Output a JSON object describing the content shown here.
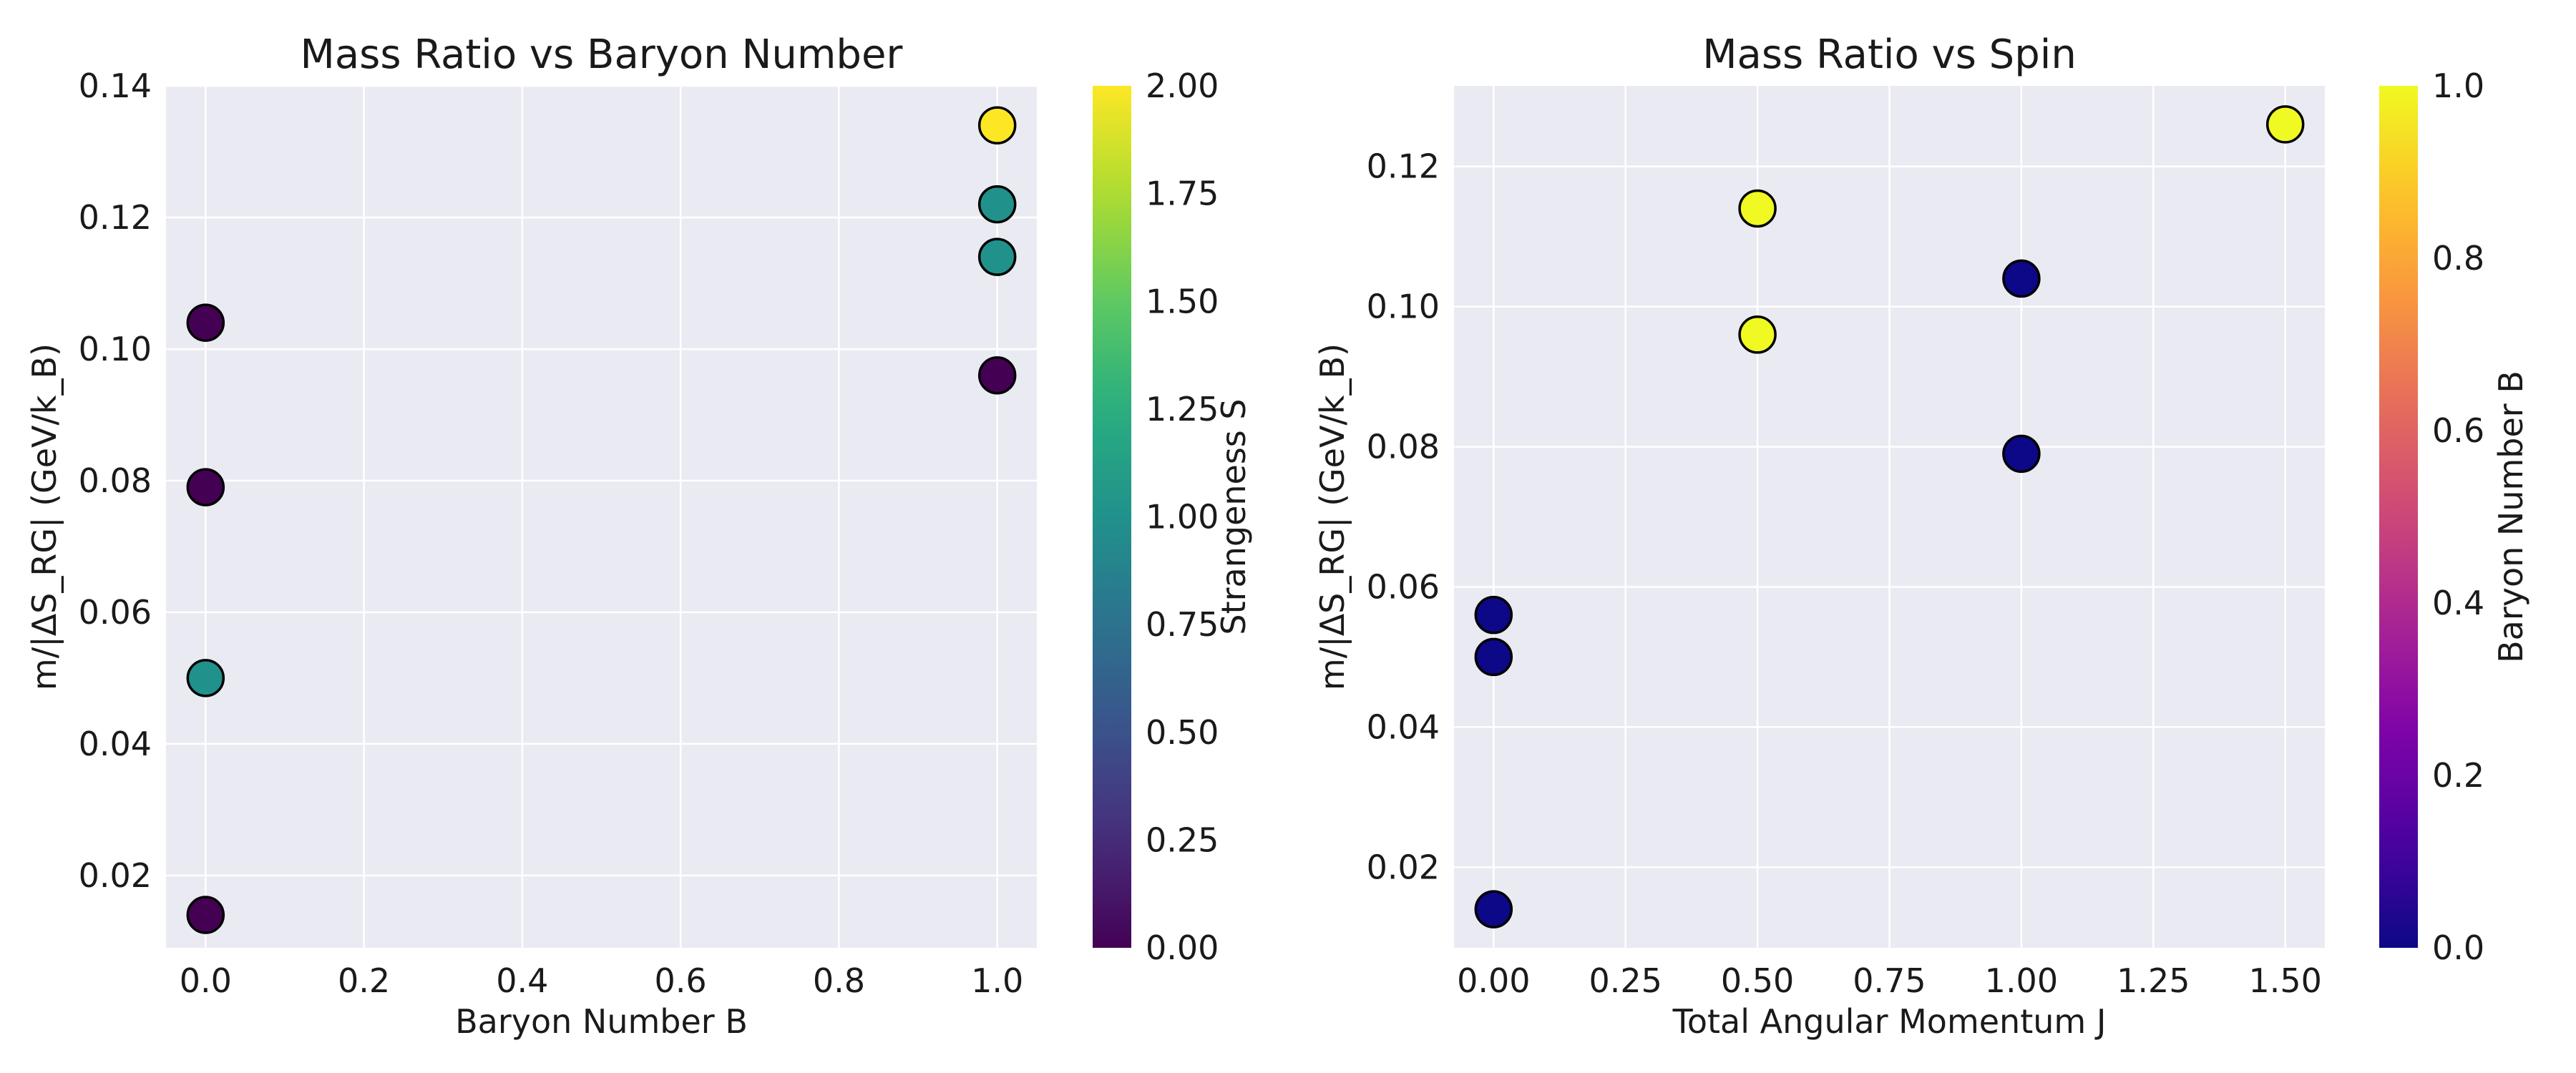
{
  "chart_data": [
    {
      "type": "scatter",
      "title": "Mass Ratio vs Baryon Number",
      "xlabel": "Baryon Number B",
      "ylabel": "m/|ΔS_RG| (GeV/k_B)",
      "xlim": [
        -0.05,
        1.05
      ],
      "ylim": [
        0.009,
        0.14
      ],
      "xticks": [
        "0.0",
        "0.2",
        "0.4",
        "0.6",
        "0.8",
        "1.0"
      ],
      "yticks": [
        "0.02",
        "0.04",
        "0.06",
        "0.08",
        "0.10",
        "0.12",
        "0.14"
      ],
      "grid": true,
      "colormap": "viridis",
      "colorbar": {
        "label": "Strangeness S",
        "range": [
          0,
          2
        ],
        "ticks": [
          "0.00",
          "0.25",
          "0.50",
          "0.75",
          "1.00",
          "1.25",
          "1.50",
          "1.75",
          "2.00"
        ]
      },
      "points": [
        {
          "x": 0,
          "y": 0.104,
          "c": 0
        },
        {
          "x": 0,
          "y": 0.079,
          "c": 0
        },
        {
          "x": 0,
          "y": 0.05,
          "c": 1
        },
        {
          "x": 0,
          "y": 0.014,
          "c": 0
        },
        {
          "x": 1,
          "y": 0.134,
          "c": 2
        },
        {
          "x": 1,
          "y": 0.122,
          "c": 1
        },
        {
          "x": 1,
          "y": 0.114,
          "c": 1
        },
        {
          "x": 1,
          "y": 0.096,
          "c": 0
        }
      ]
    },
    {
      "type": "scatter",
      "title": "Mass Ratio vs Spin",
      "xlabel": "Total Angular Momentum J",
      "ylabel": "m/|ΔS_RG| (GeV/k_B)",
      "xlim": [
        -0.075,
        1.575
      ],
      "ylim": [
        0.0085,
        0.1315
      ],
      "xticks": [
        "0.00",
        "0.25",
        "0.50",
        "0.75",
        "1.00",
        "1.25",
        "1.50"
      ],
      "yticks": [
        "0.02",
        "0.04",
        "0.06",
        "0.08",
        "0.10",
        "0.12"
      ],
      "grid": true,
      "colormap": "plasma",
      "colorbar": {
        "label": "Baryon Number B",
        "range": [
          0,
          1
        ],
        "ticks": [
          "0.0",
          "0.2",
          "0.4",
          "0.6",
          "0.8",
          "1.0"
        ]
      },
      "points": [
        {
          "x": 1.5,
          "y": 0.126,
          "c": 1
        },
        {
          "x": 0.5,
          "y": 0.114,
          "c": 1
        },
        {
          "x": 0.5,
          "y": 0.096,
          "c": 1
        },
        {
          "x": 1.0,
          "y": 0.104,
          "c": 0
        },
        {
          "x": 1.0,
          "y": 0.079,
          "c": 0
        },
        {
          "x": 0.0,
          "y": 0.056,
          "c": 0
        },
        {
          "x": 0.0,
          "y": 0.05,
          "c": 0
        },
        {
          "x": 0.0,
          "y": 0.014,
          "c": 0
        }
      ]
    }
  ]
}
